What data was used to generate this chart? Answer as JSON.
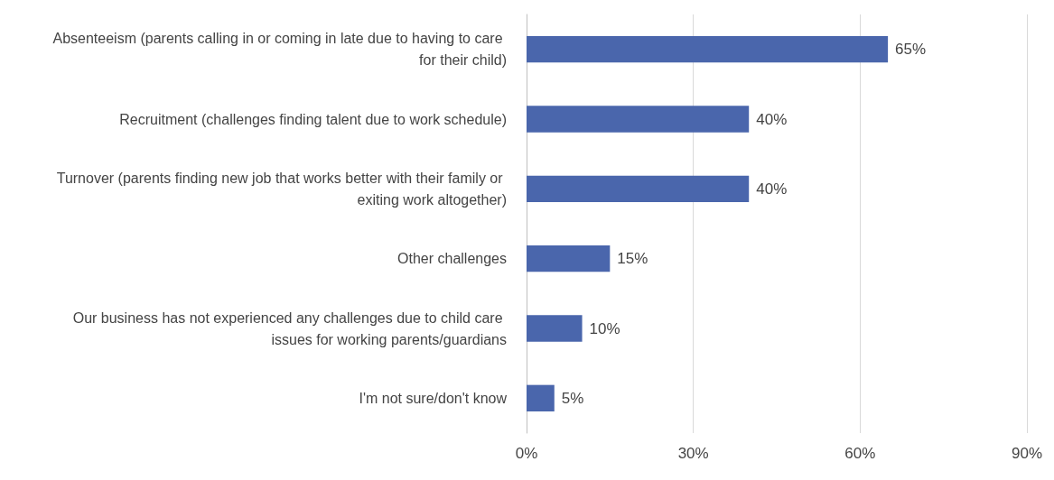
{
  "chart_data": {
    "type": "bar",
    "orientation": "horizontal",
    "categories": [
      "Absenteeism (parents calling in or coming in late due to having to care for their child)",
      "Recruitment (challenges finding talent due to work schedule)",
      "Turnover (parents finding new job that works better with their family or exiting work altogether)",
      "Other challenges",
      "Our business has not experienced any challenges due to child care issues for working parents/guardians",
      "I'm not sure/don't know"
    ],
    "values": [
      65,
      40,
      40,
      15,
      10,
      5
    ],
    "value_labels": [
      "65%",
      "40%",
      "40%",
      "15%",
      "10%",
      "5%"
    ],
    "color": "#4a66ac",
    "xlim": [
      0,
      90
    ],
    "xticks": [
      {
        "value": 0,
        "label": "0%"
      },
      {
        "value": 30,
        "label": "30%"
      },
      {
        "value": 60,
        "label": "60%"
      },
      {
        "value": 90,
        "label": "90%"
      }
    ],
    "grid": "x"
  }
}
